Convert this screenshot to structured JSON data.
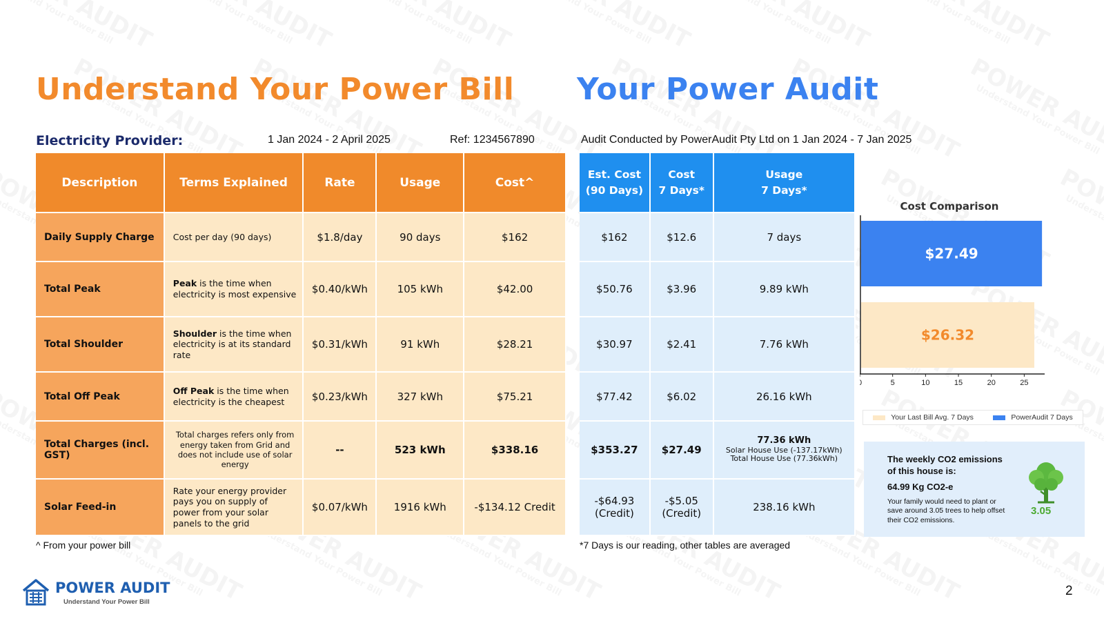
{
  "watermark": {
    "text": "POWER AUDIT",
    "sub": "Understand Your Power Bill"
  },
  "headings": {
    "left": "Understand Your Power Bill",
    "right": "Your Power Audit"
  },
  "provider": {
    "label": "Electricity Provider:",
    "period": "1 Jan 2024 - 2 April 2025",
    "ref": "Ref: 1234567890"
  },
  "audit": {
    "conducted": "Audit Conducted by PowerAudit Pty Ltd on 1 Jan 2024 - 7 Jan 2025"
  },
  "bill_table": {
    "headers": [
      "Description",
      "Terms Explained",
      "Rate",
      "Usage",
      "Cost^"
    ],
    "rows": [
      {
        "desc": "Daily Supply Charge",
        "terms_bold": "",
        "terms": "Cost per day (90 days)",
        "rate": "$1.8/day",
        "usage": "90 days",
        "cost": "$162"
      },
      {
        "desc": "Total Peak",
        "terms_bold": "Peak",
        "terms": " is the time when electricity is most expensive",
        "rate": "$0.40/kWh",
        "usage": "105 kWh",
        "cost": "$42.00"
      },
      {
        "desc": "Total Shoulder",
        "terms_bold": "Shoulder",
        "terms": " is the time when electricity is at its standard rate",
        "rate": "$0.31/kWh",
        "usage": "91 kWh",
        "cost": "$28.21"
      },
      {
        "desc": "Total Off Peak",
        "terms_bold": "Off Peak",
        "terms": " is the time when electricity is the cheapest",
        "rate": "$0.23/kWh",
        "usage": "327 kWh",
        "cost": "$75.21"
      },
      {
        "desc": "Total Charges (incl. GST)",
        "terms_bold": "",
        "terms": "Total charges refers only from energy taken from Grid and does not include use of solar energy",
        "rate": "--",
        "usage": "523 kWh",
        "cost": "$338.16"
      },
      {
        "desc": "Solar Feed-in",
        "terms_bold": "",
        "terms": "Rate your energy provider pays you on supply of power from your solar panels to the grid",
        "rate": "$0.07/kWh",
        "usage": "1916 kWh",
        "cost": "-$134.12 Credit"
      }
    ]
  },
  "audit_table": {
    "headers": [
      {
        "line1": "Est. Cost",
        "line2": "(90 Days)"
      },
      {
        "line1": "Cost",
        "line2": "7 Days*"
      },
      {
        "line1": "Usage",
        "line2": "7 Days*"
      }
    ],
    "rows": [
      {
        "est": "$162",
        "cost7": "$12.6",
        "usage7": "7 days"
      },
      {
        "est": "$50.76",
        "cost7": "$3.96",
        "usage7": "9.89 kWh"
      },
      {
        "est": "$30.97",
        "cost7": "$2.41",
        "usage7": "7.76 kWh"
      },
      {
        "est": "$77.42",
        "cost7": "$6.02",
        "usage7": "26.16 kWh"
      },
      {
        "est": "$353.27",
        "cost7": "$27.49",
        "usage7_main": "77.36 kWh",
        "usage7_l2": "Solar House Use (-137.17kWh)",
        "usage7_l3": "Total House Use (77.36kWh)"
      },
      {
        "est_l1": "-$64.93",
        "est_l2": "(Credit)",
        "cost7_l1": "-$5.05",
        "cost7_l2": "(Credit)",
        "usage7": "238.16 kWh"
      }
    ]
  },
  "notes": {
    "left": "^ From your power bill",
    "right": "*7 Days is our reading, other tables are averaged"
  },
  "chart_data": {
    "type": "bar",
    "orientation": "horizontal",
    "title": "Cost Comparison",
    "categories": [
      "PowerAudit 7 Days",
      "Your Last Bill Avg. 7 Days"
    ],
    "series": [
      {
        "name": "PowerAudit 7 Days",
        "value": 27.49,
        "label": "$27.49",
        "color": "#3b82f0",
        "label_color": "#ffffff"
      },
      {
        "name": "Your Last Bill Avg. 7 Days",
        "value": 26.32,
        "label": "$26.32",
        "color": "#fde8c6",
        "label_color": "#f28a2c"
      }
    ],
    "xlim": [
      0,
      28
    ],
    "xticks": [
      0,
      5,
      10,
      15,
      20,
      25
    ],
    "legend_position": "bottom",
    "legend": [
      "Your Last Bill Avg. 7 Days",
      "PowerAudit 7 Days"
    ]
  },
  "co2": {
    "heading": "The weekly CO2 emissions of this house is:",
    "value": "64.99 Kg CO2-e",
    "text": "Your family would need to plant or save around 3.05 trees to help offset their CO2 emissions.",
    "trees": "3.05"
  },
  "logo": {
    "name": "POWER AUDIT",
    "tagline": "Understand Your Power Bill"
  },
  "page_number": "2",
  "colors": {
    "orange": "#f28a2c",
    "blue": "#3b82f0",
    "header_blue": "#1f8fef",
    "tree_green": "#4caa32"
  }
}
